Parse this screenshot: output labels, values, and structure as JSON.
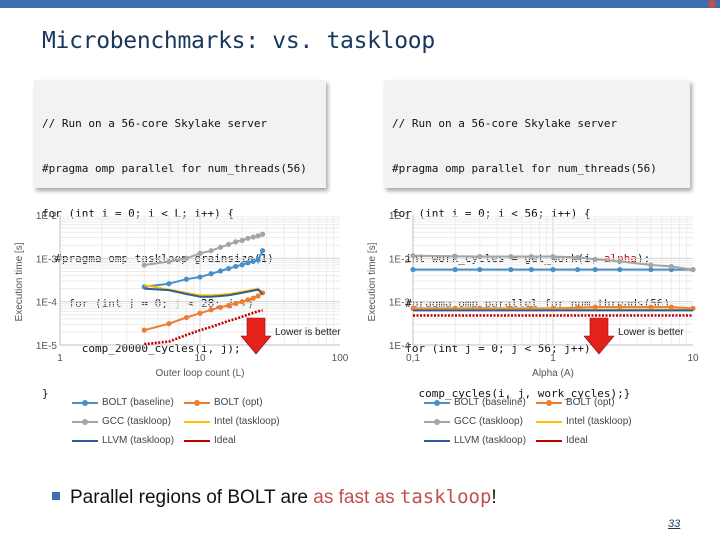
{
  "slide": {
    "title": "Microbenchmarks: vs. taskloop",
    "page_number": "33"
  },
  "code_left": [
    "// Run on a 56-core Skylake server",
    "#pragma omp parallel for num_threads(56)",
    "for (int i = 0; i < L; i++) {",
    "  #pragma omp taskloop grainsize(1)",
    "    for (int j = 0; j < 28; j++)",
    "      comp_20000_cycles(i, j);",
    "}"
  ],
  "code_right": {
    "lines": [
      "// Run on a 56-core Skylake server",
      "#pragma omp parallel for num_threads(56)",
      "for (int i = 0; i < 56; i++) {",
      "  int work_cycles = get_work(i, alpha);",
      "  #pragma omp parallel for num_threads(56)",
      "  for (int j = 0; j < 56; j++)",
      "    comp_cycles(i, j, work_cycles);}"
    ],
    "highlight_word": "alpha",
    "highlight_line": 3
  },
  "colors": {
    "bolt_baseline": "#4a90c8",
    "bolt_opt": "#ed7d31",
    "gcc": "#a5a5a5",
    "intel": "#ffc000",
    "llvm": "#2e5b9a",
    "ideal": "#c00000",
    "arrow": "#e3221c",
    "title": "#17375e"
  },
  "chart_data": [
    {
      "type": "line",
      "xlabel": "Outer loop count (L)",
      "ylabel": "Execution time [s]",
      "xscale": "log",
      "yscale": "log",
      "xlim": [
        1,
        100
      ],
      "ylim": [
        1e-05,
        0.01
      ],
      "x_ticks": [
        "1",
        "10",
        "100"
      ],
      "y_ticks": [
        "1E-5",
        "1E-4",
        "1E-3",
        "1E-2"
      ],
      "grid": true,
      "legend_position": "bottom",
      "annotation": "Lower is better",
      "x": [
        4,
        6,
        8,
        10,
        12,
        14,
        16,
        18,
        20,
        22,
        24,
        26,
        28
      ],
      "series": [
        {
          "name": "BOLT (baseline)",
          "values": [
            0.00022,
            0.00026,
            0.00033,
            0.00037,
            0.00044,
            0.00051,
            0.00058,
            0.00065,
            0.00071,
            0.00079,
            0.00085,
            0.00092,
            0.0015
          ]
        },
        {
          "name": "BOLT (opt)",
          "values": [
            2.2e-05,
            3.1e-05,
            4.3e-05,
            5.4e-05,
            6.5e-05,
            7.4e-05,
            8.2e-05,
            9.1e-05,
            0.0001,
            0.00011,
            0.00012,
            0.000135,
            0.00016
          ]
        },
        {
          "name": "GCC (taskloop)",
          "values": [
            0.0007,
            0.00084,
            0.001,
            0.0013,
            0.0015,
            0.0018,
            0.0021,
            0.0024,
            0.0026,
            0.0029,
            0.0031,
            0.0033,
            0.0036
          ]
        },
        {
          "name": "Intel (taskloop)",
          "values": [
            0.00024,
            0.00019,
            0.00016,
            0.00014,
            0.00014,
            0.000145,
            0.00015,
            0.00016,
            0.00017,
            0.00018,
            0.00019,
            0.0002,
            0.00016
          ]
        },
        {
          "name": "LLVM (taskloop)",
          "values": [
            0.0002,
            0.000185,
            0.00015,
            0.00013,
            0.00013,
            0.000135,
            0.00014,
            0.00015,
            0.00016,
            0.00017,
            0.00018,
            0.00019,
            0.00015
          ]
        },
        {
          "name": "Ideal",
          "values": [
            8.2e-06,
            1.2e-05,
            1.7e-05,
            2.2e-05,
            2.6e-05,
            3.1e-05,
            3.6e-05,
            4e-05,
            4.5e-05,
            5e-05,
            5.5e-05,
            6e-05,
            6.3e-05
          ]
        }
      ]
    },
    {
      "type": "line",
      "xlabel": "Alpha (A)",
      "ylabel": "Execution time [s]",
      "xscale": "log",
      "yscale": "log",
      "xlim": [
        0.1,
        10
      ],
      "ylim": [
        0.0001,
        0.1
      ],
      "x_ticks": [
        "0,1",
        "1",
        "10"
      ],
      "y_ticks": [
        "1E-4",
        "1E-3",
        "1E-2",
        "1E-1"
      ],
      "grid": true,
      "legend_position": "bottom",
      "annotation": "Lower is better",
      "x": [
        0.1,
        0.2,
        0.3,
        0.5,
        0.7,
        1,
        1.5,
        2,
        3,
        5,
        7,
        10
      ],
      "series": [
        {
          "name": "BOLT (baseline)",
          "values": [
            0.0055,
            0.0055,
            0.0055,
            0.0055,
            0.0055,
            0.0055,
            0.0055,
            0.0055,
            0.0055,
            0.0055,
            0.0055,
            0.0055
          ]
        },
        {
          "name": "BOLT (opt)",
          "values": [
            0.0007,
            0.0007,
            0.0007,
            0.0007,
            0.0007,
            0.0007,
            0.00072,
            0.00075,
            0.00075,
            0.00075,
            0.00075,
            0.0007
          ]
        },
        {
          "name": "GCC (taskloop)",
          "values": [
            0.0115,
            0.0112,
            0.011,
            0.011,
            0.011,
            0.011,
            0.0105,
            0.0095,
            0.0085,
            0.007,
            0.0065,
            0.0055
          ]
        },
        {
          "name": "Intel (taskloop)",
          "values": [
            0.00065,
            0.00065,
            0.00065,
            0.00065,
            0.00065,
            0.00065,
            0.00065,
            0.00065,
            0.00065,
            0.00065,
            0.00065,
            0.00065
          ]
        },
        {
          "name": "LLVM (taskloop)",
          "values": [
            0.00063,
            0.00063,
            0.00063,
            0.00063,
            0.00063,
            0.00063,
            0.00063,
            0.00063,
            0.00063,
            0.00063,
            0.00063,
            0.00063
          ]
        },
        {
          "name": "Ideal",
          "values": [
            0.00048,
            0.00048,
            0.00048,
            0.00048,
            0.00048,
            0.00048,
            0.00048,
            0.00048,
            0.00048,
            0.00048,
            0.00048,
            0.00048
          ]
        }
      ]
    }
  ],
  "bullet": {
    "prefix": "Parallel regions of BOLT are ",
    "accent": "as fast as ",
    "code": "taskloop",
    "suffix": "!"
  }
}
